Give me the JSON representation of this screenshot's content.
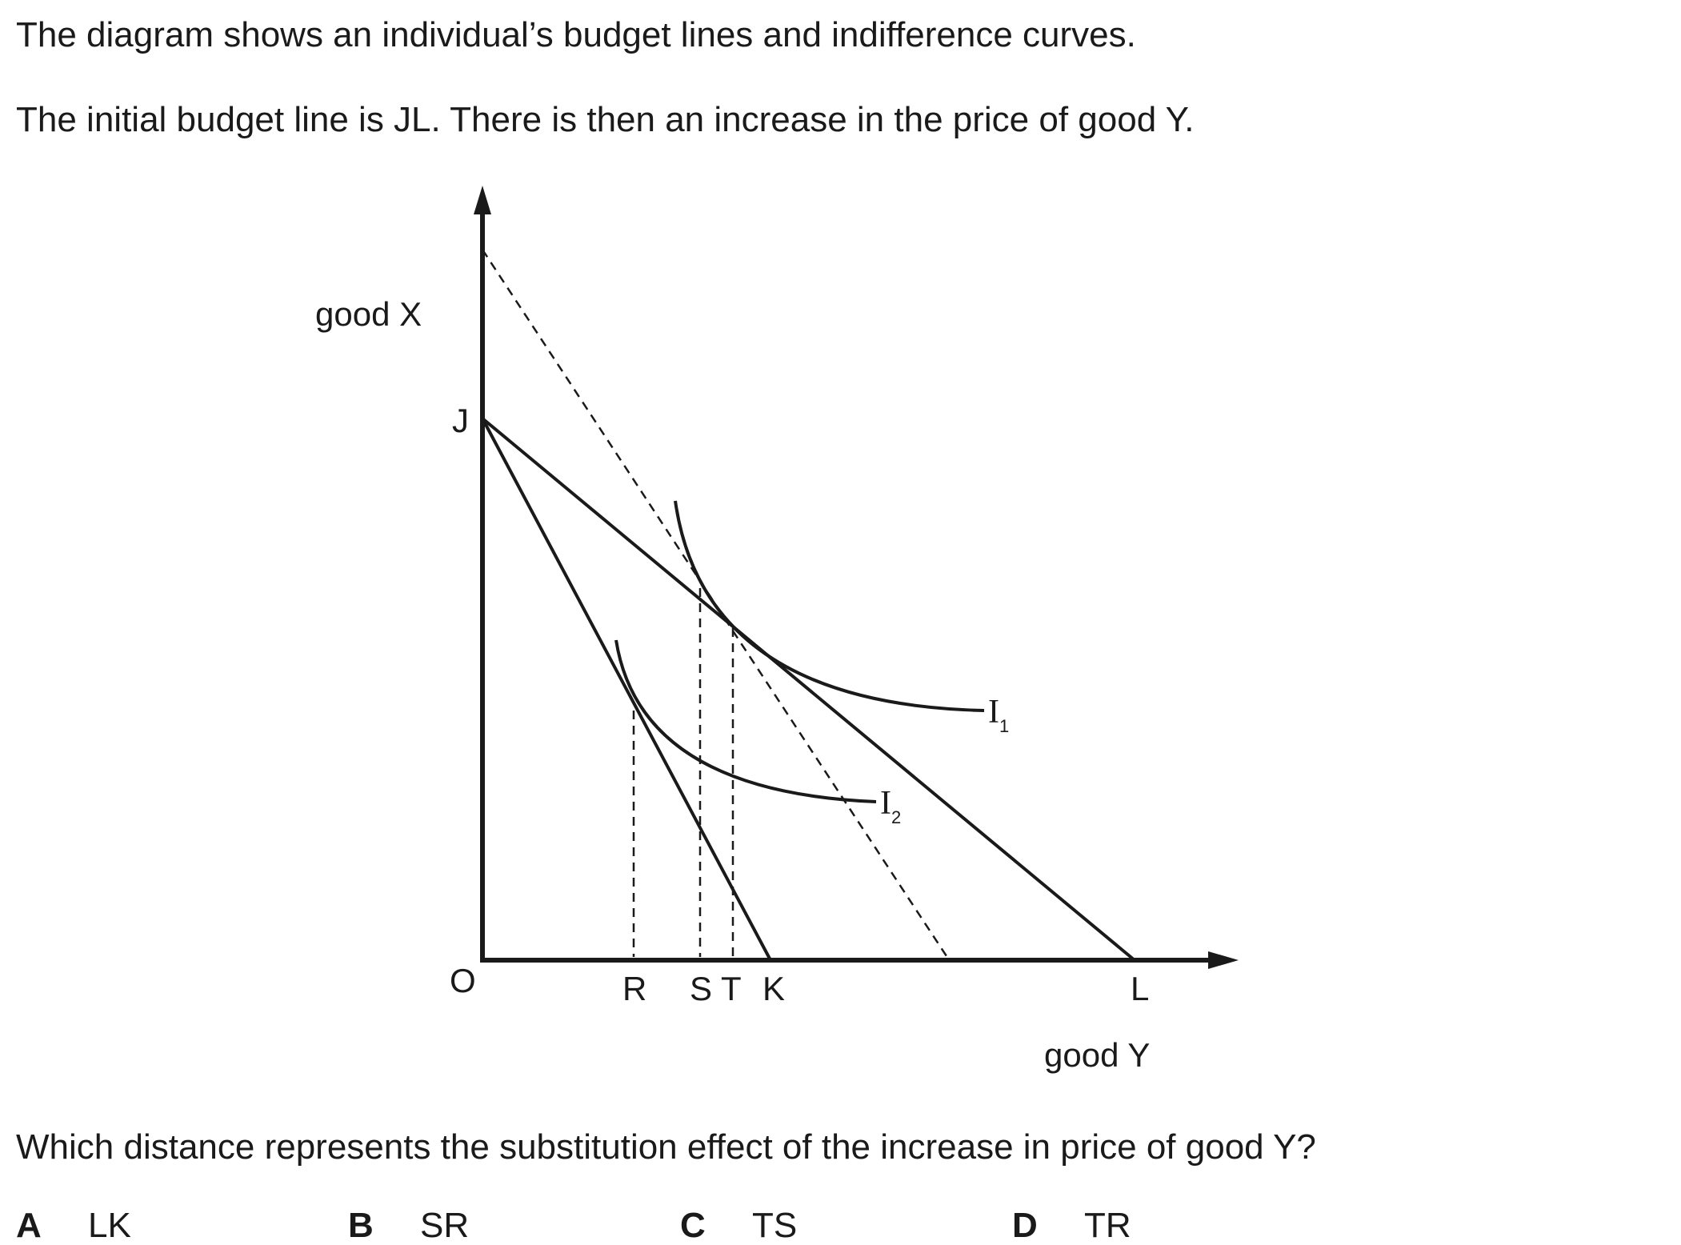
{
  "intro": {
    "line1": "The diagram shows an individual’s budget lines and indifference curves.",
    "line2": "The initial budget line is JL. There is then an increase in the price of good Y."
  },
  "diagram": {
    "y_axis_label": "good X",
    "x_axis_label": "good Y",
    "origin_label": "O",
    "point_labels": {
      "J": "J",
      "R": "R",
      "S": "S",
      "T": "T",
      "K": "K",
      "L": "L"
    },
    "curve_labels": {
      "I1_main": "I",
      "I1_sub": "1",
      "I2_main": "I",
      "I2_sub": "2"
    },
    "colors": {
      "ink": "#1a1a1a",
      "background": "#ffffff"
    }
  },
  "question": "Which distance represents the substitution effect of the increase in price of good Y?",
  "options": [
    {
      "letter": "A",
      "text": "LK"
    },
    {
      "letter": "B",
      "text": "SR"
    },
    {
      "letter": "C",
      "text": "TS"
    },
    {
      "letter": "D",
      "text": "TR"
    }
  ]
}
